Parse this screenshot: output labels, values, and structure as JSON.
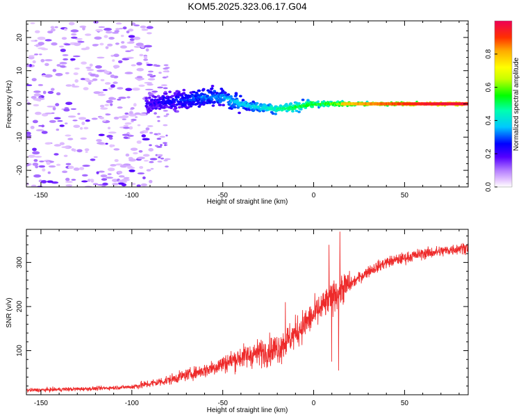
{
  "chart_data": [
    {
      "type": "heatmap",
      "title": "KOM5.2025.323.06.17.G04",
      "xlabel": "Height of straight line (km)",
      "ylabel": "Frequency (Hz)",
      "xlim": [
        -158,
        85
      ],
      "ylim": [
        -25,
        25
      ],
      "xticks": [
        -150,
        -100,
        -50,
        0,
        50
      ],
      "xtick_labels": [
        "-150",
        "-100",
        "-50",
        "0",
        "50"
      ],
      "yticks": [
        -20,
        -10,
        0,
        10,
        20
      ],
      "ytick_labels": [
        "-20",
        "-10",
        "0",
        "10",
        "20"
      ],
      "colorbar": {
        "label": "Normalized spectral amplitude",
        "range": [
          0,
          1
        ],
        "ticks": [
          0,
          0.2,
          0.4,
          0.6,
          0.8
        ],
        "tick_labels": [
          "0.0",
          "0.2",
          "0.4",
          "0.6",
          "0.8"
        ]
      },
      "ridge_center_hz": {
        "x": [
          -90,
          -75,
          -60,
          -50,
          -40,
          -30,
          -20,
          -10,
          0,
          10,
          20,
          40,
          60,
          85
        ],
        "y": [
          0,
          1,
          2,
          2,
          0,
          -1,
          -1.5,
          -1,
          0,
          0,
          0,
          0,
          0,
          0
        ]
      }
    },
    {
      "type": "line",
      "xlabel": "Height of straight line (km)",
      "ylabel": "SNR (v/v)",
      "xlim": [
        -158,
        85
      ],
      "ylim": [
        0,
        375
      ],
      "xticks": [
        -150,
        -100,
        -50,
        0,
        50
      ],
      "xtick_labels": [
        "-150",
        "-100",
        "-50",
        "0",
        "50"
      ],
      "yticks": [
        100,
        200,
        300
      ],
      "ytick_labels": [
        "100",
        "200",
        "300"
      ],
      "series": [
        {
          "name": "SNR",
          "color": "#ee2a2a",
          "x": [
            -158,
            -140,
            -120,
            -100,
            -90,
            -80,
            -70,
            -60,
            -50,
            -40,
            -30,
            -20,
            -15,
            -10,
            -5,
            0,
            5,
            10,
            15,
            20,
            30,
            40,
            50,
            60,
            70,
            85
          ],
          "y": [
            10,
            12,
            14,
            18,
            25,
            33,
            45,
            55,
            70,
            85,
            95,
            105,
            120,
            140,
            160,
            180,
            200,
            220,
            240,
            250,
            280,
            300,
            310,
            320,
            325,
            335
          ],
          "spikes": [
            {
              "x": 8.5,
              "y": 340
            },
            {
              "x": 14.5,
              "y": 370
            },
            {
              "x": 13.7,
              "y": 55
            },
            {
              "x": 9.9,
              "y": 75
            },
            {
              "x": -15.5,
              "y": 210
            }
          ]
        }
      ]
    }
  ]
}
